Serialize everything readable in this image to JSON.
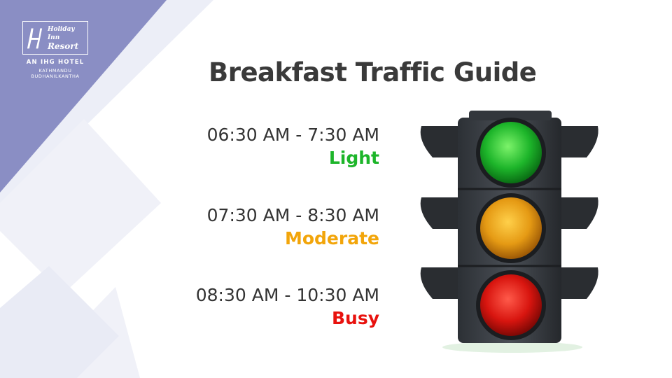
{
  "brand": {
    "logo_line1": "Holiday Inn",
    "logo_line2": "Resort",
    "tagline": "AN IHG HOTEL",
    "location_line1": "KATHMANDU",
    "location_line2": "BUDHANILKANTHA"
  },
  "title": "Breakfast Traffic Guide",
  "slots": [
    {
      "time": "06:30 AM - 7:30 AM",
      "level": "Light",
      "color": "#1db52a"
    },
    {
      "time": "07:30 AM - 8:30 AM",
      "level": "Moderate",
      "color": "#f2a50a"
    },
    {
      "time": "08:30 AM - 10:30 AM",
      "level": "Busy",
      "color": "#e8120e"
    }
  ],
  "colors": {
    "accent": "#8a8ec4",
    "light_green": "#1db52a",
    "light_amber": "#f2a50a",
    "light_red": "#e8120e"
  }
}
